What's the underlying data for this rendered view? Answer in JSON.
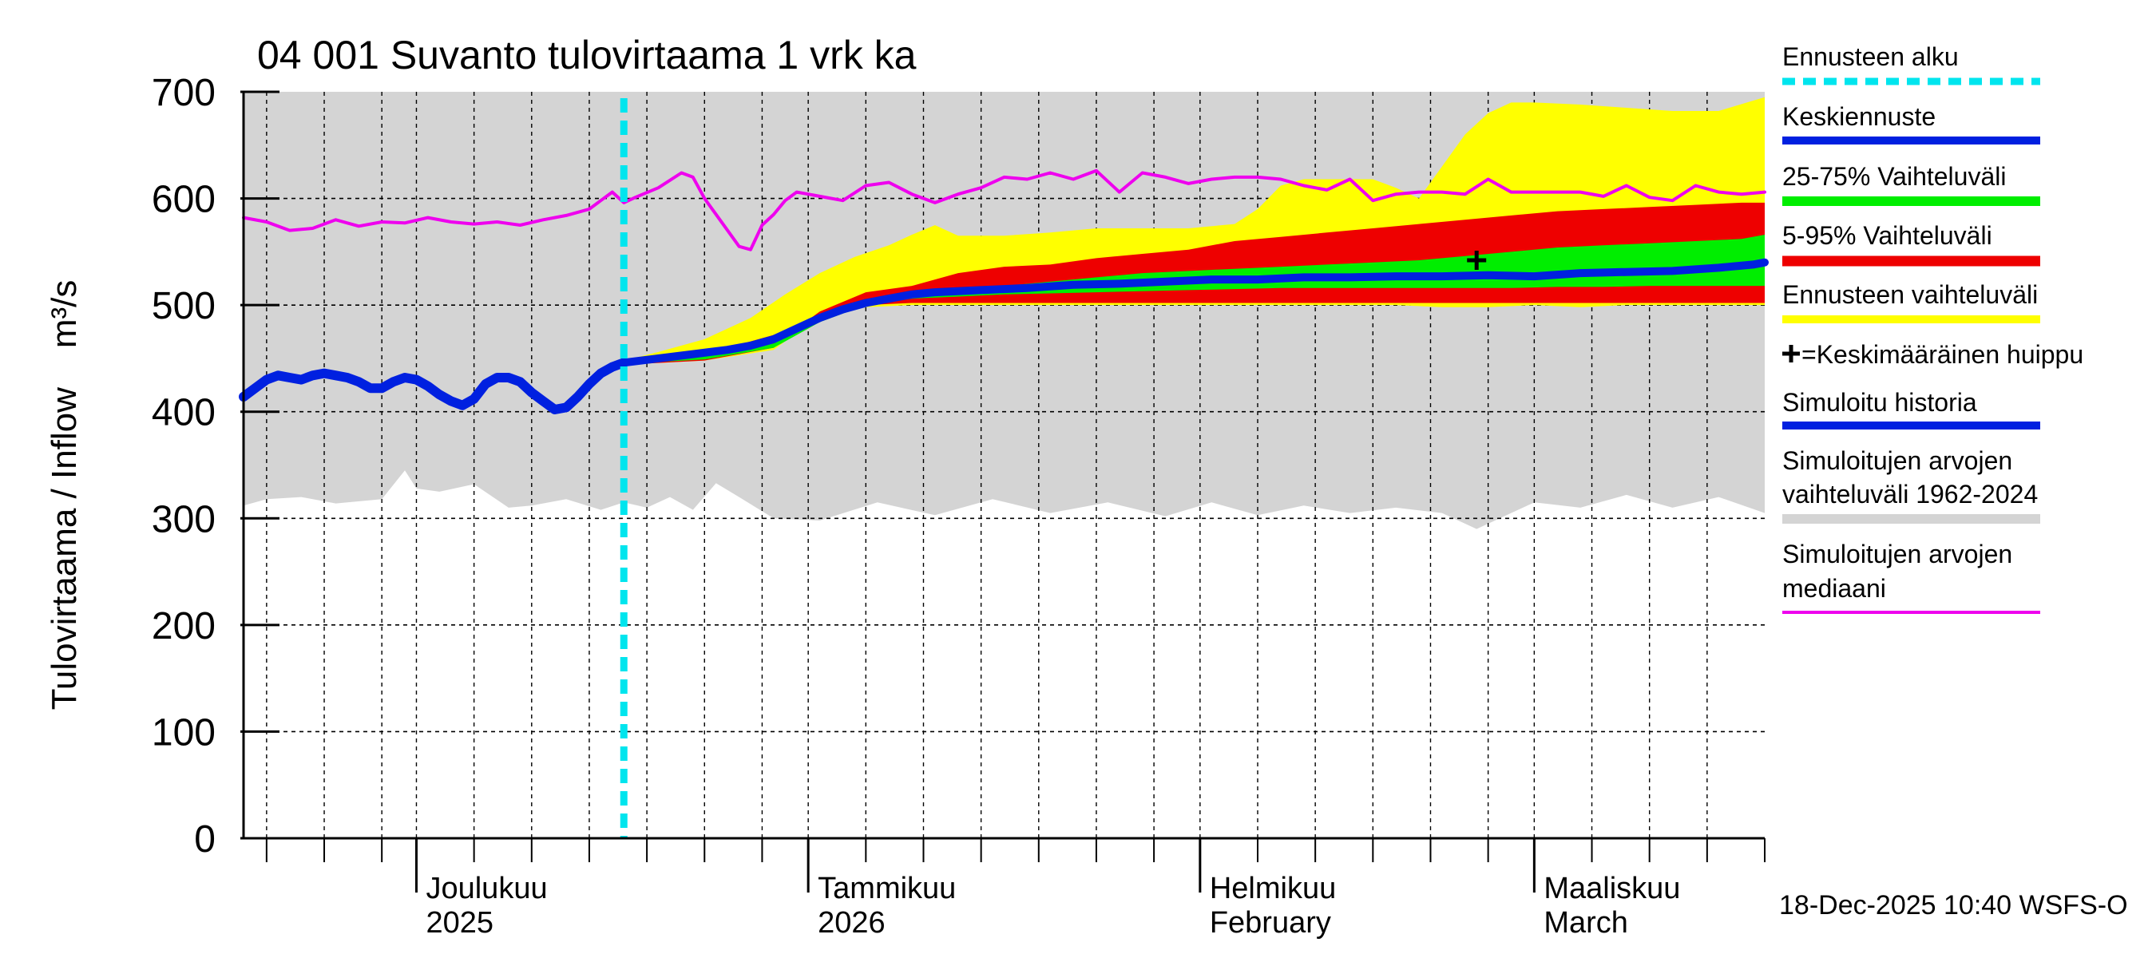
{
  "chart_data": {
    "type": "area",
    "title": "04 001 Suvanto tulovirtaama 1 vrk ka",
    "ylabel": "Tulovirtaama / Inflow    m³/s",
    "ylim": [
      0,
      700
    ],
    "y_ticks": [
      "0",
      "100",
      "200",
      "300",
      "400",
      "500",
      "600",
      "700"
    ],
    "x_range_days": [
      0,
      132
    ],
    "x_major_ticks": [
      15,
      49,
      83,
      112
    ],
    "x_minor_ticks": [
      2,
      7,
      12,
      15,
      20,
      25,
      30,
      35,
      40,
      45,
      49,
      54,
      59,
      64,
      69,
      74,
      79,
      83,
      88,
      93,
      98,
      103,
      108,
      112,
      117,
      122,
      127,
      132
    ],
    "month_labels": [
      {
        "day": 15,
        "line1": "Joulukuu",
        "line2": "2025"
      },
      {
        "day": 49,
        "line1": "Tammikuu",
        "line2": "2026"
      },
      {
        "day": 83,
        "line1": "Helmikuu",
        "line2": "February"
      },
      {
        "day": 112,
        "line1": "Maaliskuu",
        "line2": "March"
      }
    ],
    "forecast_start_day": 33,
    "mean_peak": {
      "day": 107,
      "value": 542
    },
    "series": [
      {
        "name": "Simuloitujen arvojen vaihteluväli 1962-2024 (max)",
        "x": [
          0,
          132
        ],
        "values": [
          700,
          700
        ]
      },
      {
        "name": "Simuloitujen arvojen vaihteluväli 1962-2024 (min)",
        "x": [
          0,
          2,
          5,
          8,
          12,
          14,
          15,
          17,
          20,
          23,
          25,
          28,
          31,
          33,
          35,
          37,
          39,
          41,
          43,
          46,
          50,
          55,
          60,
          65,
          70,
          75,
          80,
          84,
          88,
          92,
          96,
          100,
          104,
          107,
          109,
          112,
          116,
          120,
          124,
          128,
          132
        ],
        "values": [
          312,
          318,
          320,
          314,
          318,
          345,
          328,
          325,
          332,
          310,
          312,
          318,
          308,
          315,
          310,
          320,
          308,
          333,
          320,
          300,
          298,
          315,
          303,
          318,
          305,
          315,
          302,
          315,
          303,
          312,
          305,
          310,
          305,
          290,
          300,
          315,
          310,
          322,
          310,
          320,
          305
        ]
      },
      {
        "name": "Simuloitujen arvojen mediaani",
        "x": [
          0,
          2,
          4,
          6,
          8,
          10,
          12,
          14,
          16,
          18,
          20,
          22,
          24,
          26,
          28,
          30,
          31,
          32,
          33,
          34,
          36,
          38,
          39,
          40,
          41,
          42,
          43,
          44,
          45,
          46,
          47,
          48,
          49,
          50,
          52,
          54,
          56,
          58,
          60,
          62,
          64,
          66,
          68,
          70,
          72,
          74,
          76,
          78,
          80,
          82,
          84,
          86,
          88,
          90,
          92,
          94,
          96,
          98,
          100,
          102,
          104,
          106,
          108,
          110,
          112,
          114,
          116,
          118,
          120,
          122,
          124,
          126,
          128,
          130,
          132
        ],
        "values": [
          582,
          578,
          570,
          572,
          580,
          574,
          578,
          577,
          582,
          578,
          576,
          578,
          575,
          580,
          584,
          590,
          598,
          606,
          596,
          601,
          610,
          624,
          620,
          600,
          585,
          570,
          555,
          552,
          575,
          585,
          598,
          606,
          604,
          602,
          598,
          612,
          615,
          604,
          596,
          604,
          610,
          620,
          618,
          624,
          618,
          626,
          606,
          624,
          620,
          614,
          618,
          620,
          620,
          618,
          612,
          608,
          618,
          598,
          604,
          606,
          606,
          604,
          618,
          606,
          606,
          606,
          606,
          602,
          612,
          601,
          598,
          612,
          606,
          604,
          606
        ]
      },
      {
        "name": "Simuloitu historia",
        "x": [
          0,
          1,
          2,
          3,
          4,
          5,
          6,
          7,
          8,
          9,
          10,
          11,
          12,
          13,
          14,
          15,
          16,
          17,
          18,
          19,
          20,
          21,
          22,
          23,
          24,
          25,
          26,
          27,
          28,
          29,
          30,
          31,
          32,
          33
        ],
        "values": [
          414,
          422,
          430,
          434,
          432,
          430,
          434,
          436,
          434,
          432,
          428,
          422,
          422,
          428,
          432,
          430,
          424,
          416,
          410,
          406,
          412,
          426,
          432,
          432,
          428,
          418,
          410,
          402,
          404,
          414,
          426,
          436,
          442,
          446
        ]
      },
      {
        "name": "Keskiennuste",
        "x": [
          33,
          36,
          39,
          42,
          44,
          46,
          48,
          50,
          52,
          54,
          56,
          58,
          60,
          64,
          68,
          72,
          76,
          80,
          84,
          88,
          92,
          96,
          100,
          104,
          108,
          112,
          116,
          120,
          124,
          128,
          131,
          132
        ],
        "values": [
          446,
          450,
          454,
          458,
          462,
          468,
          478,
          488,
          496,
          502,
          506,
          510,
          512,
          514,
          516,
          519,
          520,
          522,
          524,
          524,
          526,
          526,
          527,
          527,
          528,
          527,
          530,
          531,
          532,
          535,
          538,
          540
        ]
      },
      {
        "name": "Ennusteen vaihteluväli (max)",
        "x": [
          33,
          36,
          40,
          44,
          47,
          50,
          53,
          56,
          58,
          60,
          62,
          66,
          70,
          74,
          78,
          82,
          86,
          88,
          90,
          92,
          94,
          96,
          98,
          100,
          102,
          104,
          106,
          108,
          110,
          112,
          116,
          120,
          124,
          128,
          132
        ],
        "values": [
          448,
          456,
          468,
          488,
          510,
          530,
          545,
          556,
          566,
          575,
          565,
          565,
          568,
          572,
          572,
          572,
          576,
          590,
          612,
          618,
          618,
          618,
          618,
          610,
          600,
          630,
          660,
          680,
          690,
          690,
          688,
          685,
          682,
          682,
          695
        ]
      },
      {
        "name": "Ennusteen vaihteluväli (min)",
        "x": [
          33,
          40,
          46,
          50,
          54,
          58,
          62,
          70,
          80,
          90,
          100,
          104,
          108,
          112,
          116,
          120,
          124,
          128,
          132
        ],
        "values": [
          444,
          448,
          458,
          490,
          498,
          500,
          500,
          500,
          500,
          500,
          500,
          498,
          498,
          500,
          498,
          500,
          500,
          500,
          500
        ]
      },
      {
        "name": "5-95% Vaihteluväli (upper)",
        "x": [
          33,
          40,
          44,
          48,
          50,
          54,
          58,
          62,
          66,
          70,
          74,
          78,
          82,
          86,
          90,
          94,
          98,
          102,
          106,
          110,
          114,
          118,
          122,
          126,
          130,
          132
        ],
        "values": [
          448,
          454,
          466,
          478,
          494,
          512,
          518,
          530,
          536,
          538,
          544,
          548,
          552,
          560,
          564,
          568,
          572,
          576,
          580,
          584,
          588,
          590,
          592,
          594,
          596,
          596
        ]
      },
      {
        "name": "5-95% Vaihteluväli (lower)",
        "x": [
          33,
          40,
          46,
          50,
          54,
          58,
          62,
          70,
          80,
          90,
          100,
          110,
          120,
          132
        ],
        "values": [
          444,
          448,
          460,
          492,
          500,
          502,
          502,
          502,
          502,
          502,
          502,
          502,
          502,
          502
        ]
      },
      {
        "name": "25-75% Vaihteluväli (upper)",
        "x": [
          33,
          40,
          46,
          50,
          54,
          58,
          62,
          66,
          70,
          74,
          78,
          82,
          86,
          90,
          94,
          98,
          102,
          106,
          110,
          114,
          118,
          122,
          126,
          130,
          132
        ],
        "values": [
          447,
          452,
          464,
          488,
          504,
          512,
          516,
          518,
          522,
          526,
          530,
          532,
          534,
          536,
          538,
          540,
          542,
          546,
          550,
          554,
          556,
          558,
          560,
          562,
          566
        ]
      },
      {
        "name": "25-75% Vaihteluväli (lower)",
        "x": [
          33,
          40,
          46,
          50,
          54,
          58,
          62,
          66,
          70,
          74,
          78,
          82,
          86,
          90,
          94,
          98,
          102,
          106,
          110,
          114,
          118,
          122,
          126,
          130,
          132
        ],
        "values": [
          445,
          449,
          460,
          484,
          500,
          506,
          508,
          510,
          511,
          512,
          513,
          514,
          515,
          516,
          516,
          516,
          516,
          516,
          516,
          517,
          517,
          518,
          518,
          518,
          518
        ]
      }
    ],
    "legend": [
      {
        "label": "Ennusteen alku",
        "color": "#00e5ee",
        "style": "dash"
      },
      {
        "label": "Keskiennuste",
        "color": "#0020e0",
        "style": "line"
      },
      {
        "label": "25-75% Vaihteluväli",
        "color": "#00ee00",
        "style": "line"
      },
      {
        "label": "5-95% Vaihteluväli",
        "color": "#ee0000",
        "style": "line"
      },
      {
        "label": "Ennusteen vaihteluväli",
        "color": "#ffff00",
        "style": "line"
      },
      {
        "label": "=Keskimääräinen huippu",
        "color": "#000000",
        "style": "plus"
      },
      {
        "label": "Simuloitu historia",
        "color": "#0020e0",
        "style": "line"
      },
      {
        "label": "Simuloitujen arvojen",
        "label2": "vaihteluväli 1962-2024",
        "color": "#d4d4d4",
        "style": "line"
      },
      {
        "label": "Simuloitujen arvojen",
        "label2": "mediaani",
        "color": "#ee00ee",
        "style": "line"
      }
    ],
    "footer": "18-Dec-2025 10:40 WSFS-O"
  }
}
